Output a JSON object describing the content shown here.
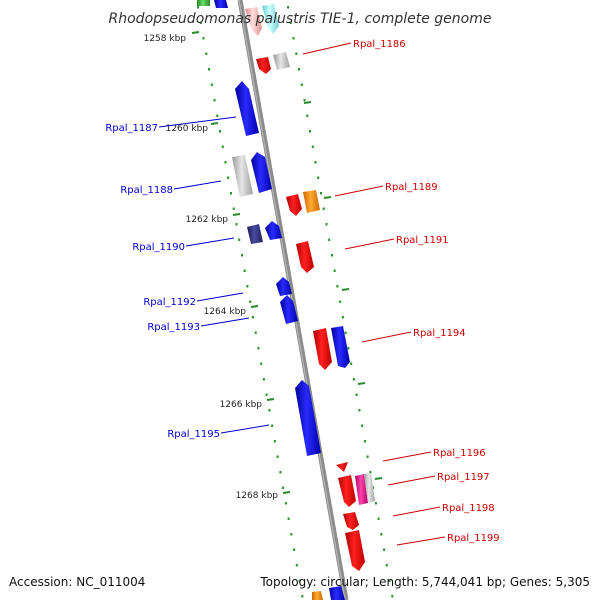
{
  "title": "Rhodopseudomonas palustris TIE-1, complete genome",
  "accession": "Accession: NC_011004",
  "topology": "Topology: circular; Length: 5,744,041 bp; Genes: 5,305",
  "colors": {
    "backbone": "#8c8c8c",
    "forward_gene": "#1010ee",
    "reverse_gene": "#ee1010",
    "label_left": "#0000cc",
    "label_right": "#cc0000",
    "tick_dots": "#229922"
  },
  "kbp_marks": [
    "1258 kbp",
    "1260 kbp",
    "1262 kbp",
    "1264 kbp",
    "1266 kbp",
    "1268 kbp"
  ],
  "genes_left": [
    "Rpal_1187",
    "Rpal_1188",
    "Rpal_1190",
    "Rpal_1192",
    "Rpal_1193",
    "Rpal_1195"
  ],
  "genes_right": [
    "Rpal_1186",
    "Rpal_1189",
    "Rpal_1191",
    "Rpal_1194",
    "Rpal_1196",
    "Rpal_1197",
    "Rpal_1198",
    "Rpal_1199"
  ]
}
